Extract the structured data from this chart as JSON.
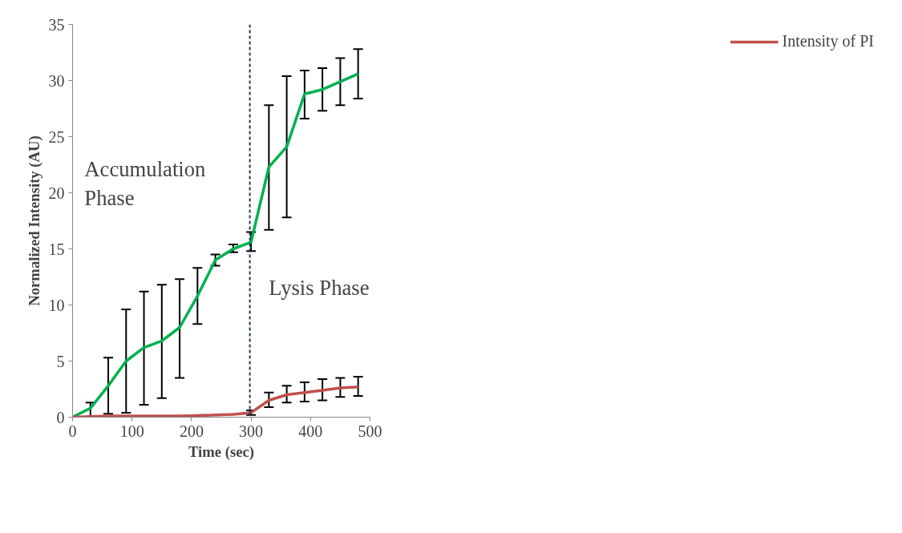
{
  "chart_data": {
    "type": "line",
    "xlabel": "Time (sec)",
    "ylabel": "Normalized Intensity (AU)",
    "x": [
      0,
      30,
      60,
      90,
      120,
      150,
      180,
      210,
      240,
      270,
      300,
      330,
      360,
      390,
      420,
      450,
      480
    ],
    "series": [
      {
        "color": "#00b050",
        "values": [
          0,
          0.8,
          2.8,
          5.0,
          6.2,
          6.8,
          8.0,
          10.8,
          14.0,
          15.0,
          15.6,
          22.3,
          24.1,
          28.8,
          29.2,
          29.9,
          30.6
        ],
        "errors": [
          null,
          [
            0,
            1.3
          ],
          [
            0.3,
            5.3
          ],
          [
            0.4,
            9.6
          ],
          [
            1.1,
            11.2
          ],
          [
            1.7,
            11.8
          ],
          [
            3.5,
            12.3
          ],
          [
            8.3,
            13.3
          ],
          [
            13.5,
            14.5
          ],
          [
            14.7,
            15.4
          ],
          [
            14.8,
            16.5
          ],
          [
            16.7,
            27.8
          ],
          [
            17.8,
            30.4
          ],
          [
            26.6,
            30.9
          ],
          [
            27.3,
            31.1
          ],
          [
            27.8,
            32.0
          ],
          [
            28.4,
            32.8
          ]
        ]
      },
      {
        "name": "Intensity of PI",
        "color": "#c0504d",
        "values": [
          0,
          0.05,
          0.1,
          0.1,
          0.1,
          0.1,
          0.1,
          0.15,
          0.2,
          0.25,
          0.4,
          1.5,
          2.0,
          2.2,
          2.4,
          2.6,
          2.7
        ],
        "errors": [
          null,
          null,
          null,
          null,
          null,
          null,
          null,
          null,
          null,
          null,
          [
            0.2,
            0.6
          ],
          [
            0.9,
            2.2
          ],
          [
            1.3,
            2.8
          ],
          [
            1.4,
            3.1
          ],
          [
            1.5,
            3.4
          ],
          [
            1.8,
            3.5
          ],
          [
            1.9,
            3.6
          ]
        ]
      }
    ],
    "xlim": [
      0,
      500
    ],
    "xticks": [
      0,
      100,
      200,
      300,
      400,
      500
    ],
    "ylim": [
      0,
      35
    ],
    "yticks": [
      0,
      5,
      10,
      15,
      20,
      25,
      30,
      35
    ],
    "ref_lines": [
      {
        "axis": "x",
        "value": 298,
        "color": "#1f3864",
        "line_style": "dashed"
      }
    ],
    "annotations": [
      "Accumulation\nPhase",
      "Lysis Phase"
    ],
    "legend": "right",
    "grid": false,
    "marker": "none",
    "line_style": "solid"
  }
}
